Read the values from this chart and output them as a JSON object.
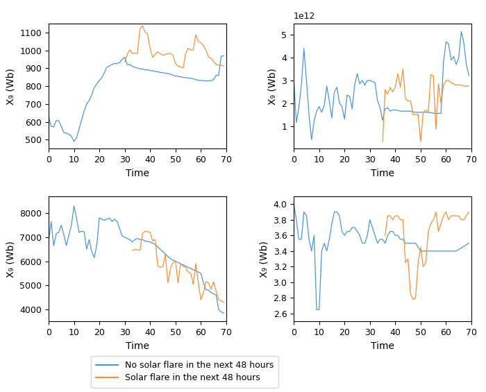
{
  "blue_color": "#4C96D7",
  "orange_color": "#F0923B",
  "legend_blue": "No solar flare in the next 48 hours",
  "legend_orange": "Solar flare in the next 48 hours",
  "ylabel": "X₉ (Wb)",
  "xlabel": "Time",
  "figsize": [
    7.0,
    5.65
  ],
  "dpi": 100,
  "tl_blue_x": [
    0,
    1,
    2,
    3,
    4,
    5,
    6,
    7,
    8,
    9,
    10,
    11,
    12,
    13,
    14,
    15,
    16,
    17,
    18,
    19,
    20,
    21,
    22,
    23,
    24,
    25,
    26,
    27,
    28,
    29,
    30,
    31,
    32,
    33,
    34,
    35,
    36,
    37,
    38,
    39,
    40,
    41,
    42,
    43,
    44,
    45,
    46,
    47,
    48,
    49,
    50,
    51,
    52,
    53,
    54,
    55,
    56,
    57,
    58,
    59,
    60,
    61,
    62,
    63,
    64,
    65,
    66,
    67,
    68,
    69
  ],
  "tl_blue_y": [
    630,
    575,
    572,
    607,
    607,
    575,
    540,
    537,
    530,
    520,
    490,
    510,
    560,
    610,
    660,
    700,
    720,
    752,
    793,
    812,
    832,
    848,
    876,
    907,
    912,
    922,
    926,
    926,
    932,
    950,
    960,
    920,
    920,
    910,
    906,
    901,
    896,
    896,
    891,
    891,
    887,
    886,
    881,
    881,
    876,
    876,
    871,
    871,
    866,
    861,
    856,
    856,
    851,
    849,
    847,
    846,
    844,
    841,
    836,
    833,
    831,
    831,
    829,
    829,
    831,
    836,
    861,
    860,
    968,
    970
  ],
  "tl_orange_x": [
    30,
    31,
    32,
    33,
    34,
    35,
    36,
    37,
    38,
    39,
    40,
    41,
    42,
    43,
    44,
    45,
    46,
    47,
    48,
    49,
    50,
    51,
    52,
    53,
    54,
    55,
    56,
    57,
    58,
    59,
    60,
    61,
    62,
    63,
    64,
    65,
    66,
    67,
    68,
    69
  ],
  "tl_orange_y": [
    935,
    978,
    1003,
    982,
    985,
    982,
    1122,
    1137,
    1102,
    1092,
    1012,
    961,
    977,
    992,
    982,
    972,
    977,
    982,
    982,
    972,
    927,
    912,
    907,
    902,
    982,
    1012,
    1002,
    1002,
    1087,
    1052,
    1042,
    1027,
    1002,
    962,
    957,
    937,
    922,
    917,
    917,
    912
  ],
  "tr_blue_x": [
    0,
    1,
    2,
    3,
    4,
    5,
    6,
    7,
    8,
    9,
    10,
    11,
    12,
    13,
    14,
    15,
    16,
    17,
    18,
    19,
    20,
    21,
    22,
    23,
    24,
    25,
    26,
    27,
    28,
    29,
    30,
    31,
    32,
    33,
    34,
    35,
    36,
    37,
    38,
    39,
    40,
    41,
    42,
    43,
    44,
    45,
    46,
    47,
    48,
    49,
    50,
    51,
    52,
    53,
    54,
    55,
    56,
    57,
    58,
    59,
    60,
    61,
    62,
    63,
    64,
    65,
    66,
    67,
    68,
    69
  ],
  "tr_blue_y": [
    3.05,
    1.15,
    1.8,
    2.8,
    4.4,
    3.0,
    1.5,
    0.4,
    1.2,
    1.65,
    1.85,
    1.6,
    1.9,
    2.75,
    2.1,
    1.35,
    2.5,
    2.7,
    2.0,
    1.85,
    1.3,
    2.35,
    2.3,
    1.75,
    2.8,
    3.3,
    2.85,
    3.0,
    2.8,
    3.0,
    3.0,
    2.95,
    2.9,
    2.1,
    1.8,
    1.25,
    1.75,
    1.8,
    1.65,
    1.7,
    1.7,
    1.68,
    1.65,
    1.65,
    1.65,
    1.65,
    1.65,
    1.62,
    1.6,
    1.6,
    1.6,
    1.6,
    1.6,
    1.6,
    1.58,
    1.56,
    1.55,
    1.55,
    1.55,
    3.8,
    4.7,
    4.6,
    3.9,
    4.05,
    3.7,
    4.0,
    5.15,
    4.65,
    3.7,
    3.2
  ],
  "tr_orange_x": [
    35,
    36,
    37,
    38,
    39,
    40,
    41,
    42,
    43,
    44,
    45,
    46,
    47,
    48,
    49,
    50,
    51,
    52,
    53,
    54,
    55,
    56,
    57,
    58,
    59,
    60,
    61,
    62,
    63,
    64,
    65,
    66,
    67,
    68,
    69
  ],
  "tr_orange_y": [
    0.3,
    2.6,
    2.4,
    2.7,
    2.5,
    2.7,
    3.3,
    2.7,
    3.5,
    2.2,
    2.1,
    2.1,
    1.5,
    1.5,
    1.5,
    0.3,
    1.6,
    1.7,
    1.6,
    3.25,
    3.2,
    0.85,
    2.85,
    2.0,
    2.8,
    3.0,
    3.0,
    2.9,
    2.85,
    2.8,
    2.8,
    2.8,
    2.75,
    2.75,
    2.75
  ],
  "bl_blue_x": [
    0,
    1,
    2,
    3,
    4,
    5,
    6,
    7,
    8,
    9,
    10,
    11,
    12,
    13,
    14,
    15,
    16,
    17,
    18,
    19,
    20,
    21,
    22,
    23,
    24,
    25,
    26,
    27,
    28,
    29,
    30,
    31,
    32,
    33,
    34,
    35,
    36,
    37,
    38,
    39,
    40,
    41,
    42,
    43,
    44,
    45,
    46,
    47,
    48,
    49,
    50,
    51,
    52,
    53,
    54,
    55,
    56,
    57,
    58,
    59,
    60,
    61,
    62,
    63,
    64,
    65,
    66,
    67,
    68,
    69
  ],
  "bl_blue_y": [
    6800,
    7650,
    6650,
    7150,
    7200,
    7500,
    7100,
    6650,
    7100,
    7500,
    8300,
    7800,
    7200,
    7250,
    7220,
    6500,
    6900,
    6400,
    6150,
    6700,
    7800,
    7750,
    7700,
    7750,
    7800,
    7650,
    7750,
    7650,
    7350,
    7050,
    7000,
    6950,
    6900,
    6800,
    6900,
    6950,
    6900,
    6900,
    6850,
    6820,
    6800,
    6750,
    6700,
    6600,
    6500,
    6400,
    6300,
    6200,
    6100,
    6050,
    6000,
    5950,
    5900,
    5850,
    5800,
    5750,
    5700,
    5650,
    5600,
    5550,
    5500,
    5100,
    4820,
    4800,
    4700,
    4650,
    4600,
    4000,
    3900,
    3850
  ],
  "bl_orange_x": [
    33,
    34,
    35,
    36,
    37,
    38,
    39,
    40,
    41,
    42,
    43,
    44,
    45,
    46,
    47,
    48,
    49,
    50,
    51,
    52,
    53,
    54,
    55,
    56,
    57,
    58,
    59,
    60,
    61,
    62,
    63,
    64,
    65,
    66,
    67,
    68,
    69
  ],
  "bl_orange_y": [
    6450,
    6490,
    6480,
    6460,
    7150,
    7250,
    7230,
    7200,
    6850,
    6900,
    5800,
    5750,
    5780,
    6300,
    5100,
    5700,
    5950,
    6000,
    5100,
    5900,
    5800,
    5750,
    5550,
    5500,
    5050,
    5900,
    5100,
    4400,
    4700,
    5150,
    5100,
    4850,
    5150,
    4750,
    4400,
    4350,
    4300
  ],
  "br_blue_x": [
    0,
    1,
    2,
    3,
    4,
    5,
    6,
    7,
    8,
    9,
    10,
    11,
    12,
    13,
    14,
    15,
    16,
    17,
    18,
    19,
    20,
    21,
    22,
    23,
    24,
    25,
    26,
    27,
    28,
    29,
    30,
    31,
    32,
    33,
    34,
    35,
    36,
    37,
    38,
    39,
    40,
    41,
    42,
    43,
    44,
    45,
    46,
    47,
    48,
    49,
    50,
    51,
    52,
    53,
    54,
    55,
    56,
    57,
    58,
    59,
    60,
    61,
    62,
    63,
    64,
    65,
    66,
    67,
    68,
    69
  ],
  "br_blue_y": [
    4.0,
    3.8,
    3.55,
    3.55,
    3.9,
    3.85,
    3.55,
    3.4,
    3.6,
    2.65,
    2.65,
    3.4,
    3.5,
    3.4,
    3.55,
    3.75,
    3.9,
    3.9,
    3.85,
    3.65,
    3.6,
    3.65,
    3.65,
    3.7,
    3.7,
    3.65,
    3.6,
    3.5,
    3.5,
    3.6,
    3.8,
    3.7,
    3.6,
    3.5,
    3.55,
    3.55,
    3.5,
    3.6,
    3.65,
    3.65,
    3.6,
    3.6,
    3.55,
    3.55,
    3.5,
    3.5,
    3.5,
    3.5,
    3.5,
    3.45,
    3.4,
    3.4,
    3.4,
    3.4,
    3.4,
    3.4,
    3.4,
    3.4,
    3.4,
    3.4,
    3.4,
    3.4,
    3.4,
    3.4,
    3.4,
    3.42,
    3.44,
    3.46,
    3.48,
    3.5
  ],
  "br_orange_x": [
    36,
    37,
    38,
    39,
    40,
    41,
    42,
    43,
    44,
    45,
    46,
    47,
    48,
    49,
    50,
    51,
    52,
    53,
    54,
    55,
    56,
    57,
    58,
    59,
    60,
    61,
    62,
    63,
    64,
    65,
    66,
    67,
    68,
    69
  ],
  "br_orange_y": [
    3.6,
    3.85,
    3.85,
    3.8,
    3.85,
    3.85,
    3.8,
    3.8,
    3.25,
    3.3,
    2.85,
    2.78,
    2.8,
    3.25,
    3.45,
    3.2,
    3.25,
    3.65,
    3.75,
    3.8,
    3.9,
    3.65,
    3.75,
    3.85,
    3.9,
    3.8,
    3.85,
    3.85,
    3.85,
    3.85,
    3.8,
    3.8,
    3.85,
    3.9
  ]
}
